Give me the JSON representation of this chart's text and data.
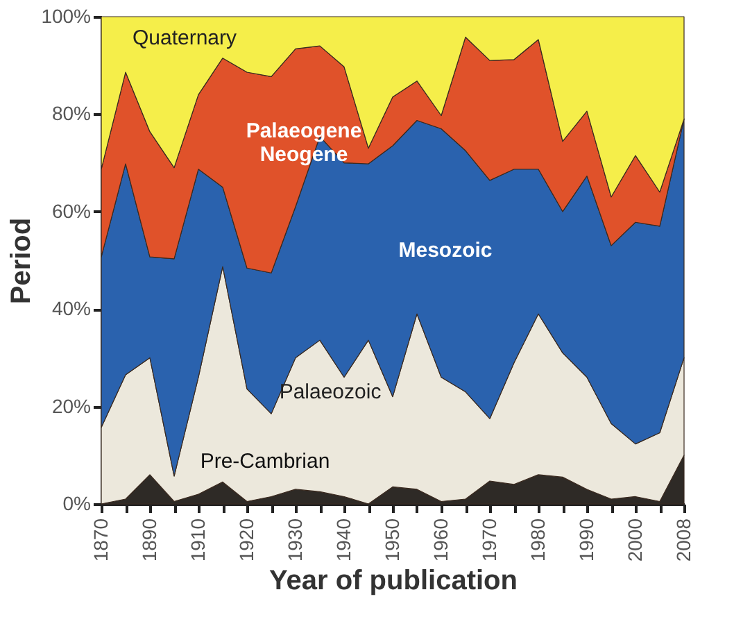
{
  "chart_data": {
    "type": "area",
    "stacked": true,
    "xlabel": "Year of publication",
    "ylabel": "Period",
    "categories": [
      "1870",
      null,
      "1890",
      null,
      "1910",
      null,
      "1920",
      null,
      "1930",
      null,
      "1940",
      null,
      "1950",
      null,
      "1960",
      null,
      "1970",
      null,
      "1980",
      null,
      "1990",
      null,
      "2000",
      null,
      "2008"
    ],
    "ylim": [
      0,
      100
    ],
    "yticks": [
      {
        "value": 0,
        "label": "0%"
      },
      {
        "value": 20,
        "label": "20%"
      },
      {
        "value": 40,
        "label": "40%"
      },
      {
        "value": 60,
        "label": "60%"
      },
      {
        "value": 80,
        "label": "80%"
      },
      {
        "value": 100,
        "label": "100%"
      }
    ],
    "grid": false,
    "legend": false,
    "series": [
      {
        "name": "Pre-Cambrian",
        "color": "#2e2a26",
        "values": [
          0,
          1,
          6,
          0.5,
          2,
          4.5,
          0.5,
          1.5,
          3,
          2.5,
          1.5,
          0,
          3.5,
          3,
          0.5,
          1,
          4.7,
          4,
          6,
          5.5,
          3,
          1,
          1.5,
          0.5,
          10
        ]
      },
      {
        "name": "Palaeozoic",
        "color": "#ece8dc",
        "values": [
          15.7,
          25.5,
          24,
          5.2,
          24,
          44.2,
          23.1,
          17,
          27,
          31.1,
          24.5,
          33.6,
          18.5,
          36,
          25.5,
          22,
          12.8,
          25,
          33,
          25.5,
          23,
          15.5,
          10.8,
          14.1,
          20
        ]
      },
      {
        "name": "Mesozoic",
        "color": "#2a62ae",
        "values": [
          35,
          43.3,
          20.7,
          44.6,
          42.7,
          16.3,
          24.8,
          28.9,
          31,
          41.8,
          44,
          36.2,
          51.5,
          39.7,
          51,
          49.5,
          48.9,
          39.7,
          29.7,
          29,
          41.3,
          36.5,
          45.5,
          42.4,
          49
        ]
      },
      {
        "name": "Palaeogene Neogene",
        "color": "#e0522a",
        "values": [
          18,
          18.8,
          25.7,
          18.7,
          15.3,
          26.5,
          40.2,
          40.3,
          32.4,
          18.6,
          19.7,
          3.2,
          10,
          8.1,
          2.7,
          23.3,
          24.6,
          22.5,
          26.6,
          14.4,
          13.3,
          10,
          13.7,
          7,
          0
        ]
      },
      {
        "name": "Quaternary",
        "color": "#f5ee4a",
        "values": [
          31.3,
          11.4,
          23.6,
          31,
          16,
          8.5,
          11.4,
          12.3,
          6.6,
          6,
          10.3,
          27,
          16.5,
          13.2,
          20.3,
          4.2,
          9,
          8.8,
          4.7,
          25.6,
          19.4,
          37,
          28.5,
          36,
          21
        ]
      }
    ]
  }
}
